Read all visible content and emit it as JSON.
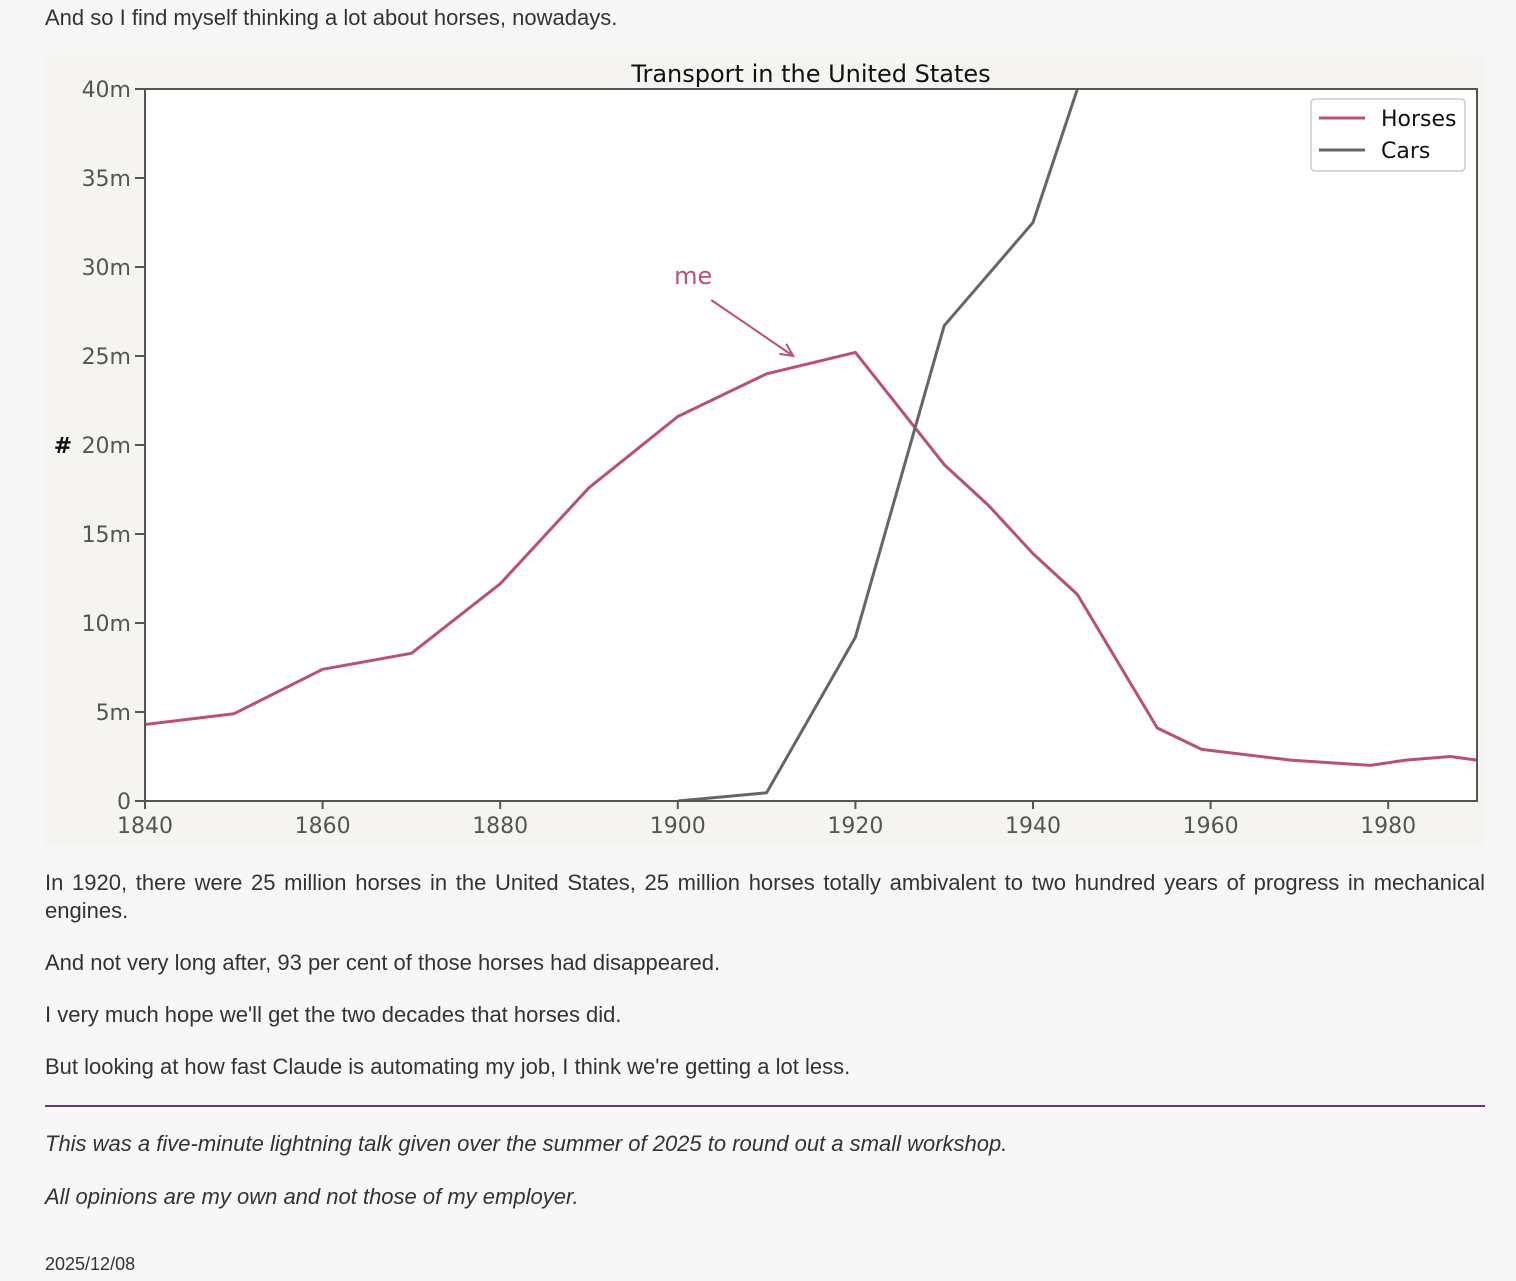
{
  "intro_text": "And so I find myself thinking a lot about horses, nowadays.",
  "paragraphs": [
    "In 1920, there were 25 million horses in the United States, 25 million horses totally ambivalent to two hundred years of progress in mechanical engines.",
    "And not very long after, 93 per cent of those horses had disappeared.",
    "I very much hope we'll get the two decades that horses did.",
    "But looking at how fast Claude is automating my job, I think we're getting a lot less."
  ],
  "footnotes": [
    "This was a five-minute lightning talk given over the summer of 2025 to round out a small workshop.",
    "All opinions are my own and not those of my employer."
  ],
  "date": "2025/12/08",
  "colors": {
    "horses": "#b8507a",
    "cars": "#666666",
    "divider": "#5a3a7e"
  },
  "chart_data": {
    "type": "line",
    "title": "Transport in the United States",
    "xlabel": "",
    "ylabel": "#",
    "xlim": [
      1840,
      1990
    ],
    "ylim": [
      0,
      40
    ],
    "x_ticks": [
      "1840",
      "1860",
      "1880",
      "1900",
      "1920",
      "1940",
      "1960",
      "1980"
    ],
    "y_ticks": [
      "0",
      "5m",
      "10m",
      "15m",
      "20m",
      "25m",
      "30m",
      "35m",
      "40m"
    ],
    "grid": false,
    "legend_position": "top-right",
    "series": [
      {
        "name": "Horses",
        "color": "#b8507a",
        "points": [
          [
            1840,
            4.3
          ],
          [
            1850,
            4.9
          ],
          [
            1860,
            7.4
          ],
          [
            1870,
            8.3
          ],
          [
            1880,
            12.2
          ],
          [
            1890,
            17.6
          ],
          [
            1900,
            21.6
          ],
          [
            1910,
            24.0
          ],
          [
            1920,
            25.2
          ],
          [
            1930,
            18.9
          ],
          [
            1935,
            16.6
          ],
          [
            1940,
            13.9
          ],
          [
            1945,
            11.6
          ],
          [
            1954,
            4.1
          ],
          [
            1959,
            2.9
          ],
          [
            1969,
            2.3
          ],
          [
            1978,
            2.0
          ],
          [
            1982,
            2.3
          ],
          [
            1987,
            2.5
          ],
          [
            1990,
            2.3
          ]
        ]
      },
      {
        "name": "Cars",
        "color": "#666666",
        "points": [
          [
            1900,
            0.0
          ],
          [
            1910,
            0.46
          ],
          [
            1920,
            9.2
          ],
          [
            1930,
            26.7
          ],
          [
            1940,
            32.5
          ],
          [
            1945,
            40.0
          ]
        ]
      }
    ],
    "annotation": {
      "text": "me",
      "points_to": [
        1913,
        25.0
      ]
    }
  }
}
